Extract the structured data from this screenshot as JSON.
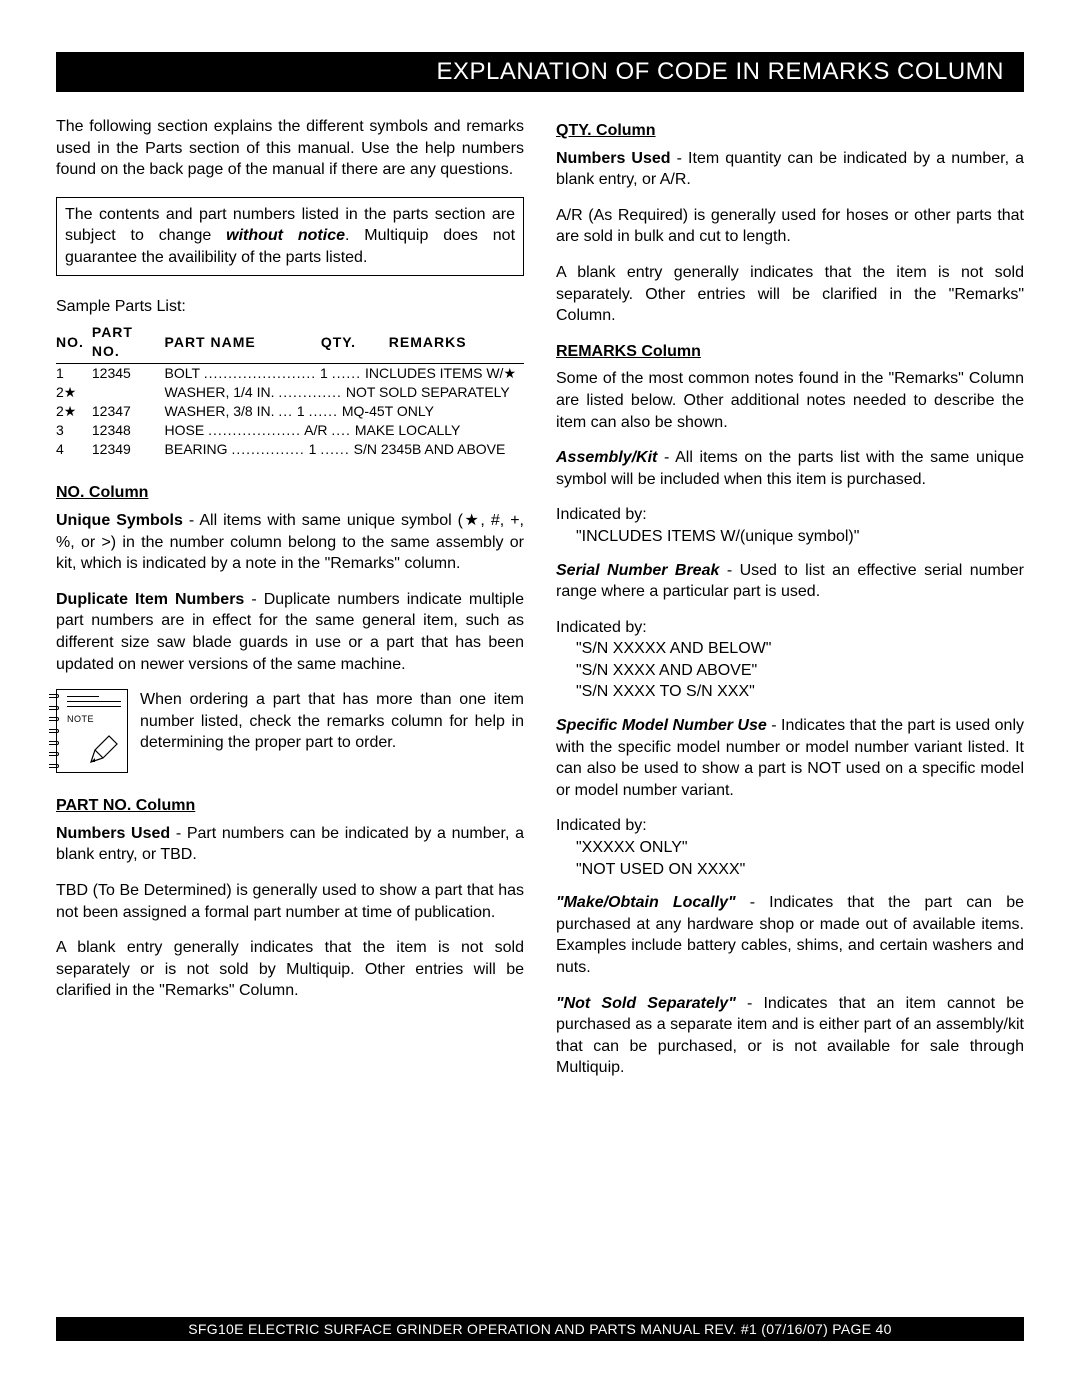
{
  "title": "EXPLANATION OF CODE IN REMARKS COLUMN",
  "intro": "The following section explains the different symbols and remarks used in the Parts section of this manual. Use the help numbers found on the back page of the manual if there are any questions.",
  "notice": {
    "pre": "The contents and part numbers listed in the parts section are subject to change ",
    "em": "without notice",
    "post": ". Multiquip does not guarantee the availibility of the parts listed."
  },
  "sample_label": "Sample Parts List:",
  "parts_table": {
    "headers": [
      "NO.",
      "PART NO.",
      "PART NAME",
      "QTY.",
      "REMARKS"
    ],
    "rows": [
      {
        "no": "1",
        "pn": "12345",
        "name": "BOLT",
        "dots1": ".......................",
        "qty": "1",
        "dots2": "......",
        "rem": "INCLUDES ITEMS W/★"
      },
      {
        "no": "2★",
        "pn": "",
        "name": "WASHER, 1/4 IN.",
        "dots1": "",
        "qty": "",
        "dots2": ".............",
        "rem": "NOT SOLD SEPARATELY"
      },
      {
        "no": "2★",
        "pn": "12347",
        "name": "WASHER, 3/8 IN.",
        "dots1": "...",
        "qty": "1",
        "dots2": "......",
        "rem": "MQ-45T ONLY"
      },
      {
        "no": "3",
        "pn": "12348",
        "name": "HOSE",
        "dots1": "...................",
        "qty": "A/R",
        "dots2": "....",
        "rem": "MAKE LOCALLY"
      },
      {
        "no": "4",
        "pn": "12349",
        "name": "BEARING",
        "dots1": "...............",
        "qty": "1",
        "dots2": "......",
        "rem": "S/N 2345B AND ABOVE"
      }
    ]
  },
  "note_icon_label": "NOTE",
  "left": {
    "no_column": {
      "head": "NO. Column",
      "unique_t": "Unique Symbols",
      "unique_b": " - All items with same unique symbol (★, #, +, %, or >) in the number column belong to the same assembly or kit, which is indicated by a note in the \"Remarks\" column.",
      "dup_t": "Duplicate Item Numbers",
      "dup_b": " - Duplicate numbers indicate multiple part numbers are in effect for the same general item, such as different size saw blade guards in use or a part that has been updated on newer versions of the same machine.",
      "note_text": "When ordering a part that has more than one item number listed, check the remarks column for help in determining the proper part to order."
    },
    "partno_column": {
      "head": "PART NO. Column",
      "nums_t": "Numbers Used",
      "nums_b": " - Part numbers can be indicated by a number, a blank entry, or TBD.",
      "tbd": "TBD (To Be Determined) is generally used to show a part that has not been assigned a formal part number at time of publication.",
      "blank": "A blank entry generally indicates that the item is not sold separately or is not sold by Multiquip. Other entries will be clarified in the \"Remarks\" Column."
    }
  },
  "right": {
    "qty_column": {
      "head": "QTY. Column",
      "nums_t": "Numbers Used",
      "nums_b": " - Item quantity can be indicated by a number, a blank entry, or A/R.",
      "ar": "A/R (As Required) is generally used for hoses or other parts that are sold in bulk and cut to length.",
      "blank": "A blank entry generally indicates that the item is not sold separately. Other entries will be clarified in the \"Remarks\" Column."
    },
    "remarks_column": {
      "head": "REMARKS Column",
      "intro": "Some of the most common notes found in the \"Remarks\" Column are listed below. Other additional notes needed to describe the item can also be shown.",
      "asm_t": "Assembly/Kit",
      "asm_b": " - All items on the parts list with the same unique symbol will be included when this item is purchased.",
      "asm_ind_label": "Indicated by:",
      "asm_ind": "\"INCLUDES ITEMS W/(unique symbol)\"",
      "snb_t": "Serial Number Break",
      "snb_b": " - Used to list an effective serial number range where a particular part is used.",
      "snb_ind_label": "Indicated by:",
      "snb_ind1": "\"S/N XXXXX AND BELOW\"",
      "snb_ind2": "\"S/N XXXX AND ABOVE\"",
      "snb_ind3": "\"S/N XXXX TO S/N XXX\"",
      "smn_t": "Specific Model Number Use",
      "smn_b": " - Indicates that the part is used only with the specific model number or model number variant listed. It can also be used to show a part is NOT used on a specific model or model number variant.",
      "smn_ind_label": "Indicated by:",
      "smn_ind1": "\"XXXXX ONLY\"",
      "smn_ind2": "\"NOT USED ON XXXX\"",
      "mol_t": "\"Make/Obtain Locally\"",
      "mol_b": " - Indicates that the part can be purchased at any hardware shop or made out of available items. Examples include battery cables, shims, and certain washers and nuts.",
      "nss_t": "\"Not Sold Separately\"",
      "nss_b": " - Indicates that an item cannot be purchased as a separate item and is either part of an assembly/kit that can be purchased, or is not available for sale through Multiquip."
    }
  },
  "footer": "SFG10E ELECTRIC SURFACE GRINDER OPERATION AND PARTS MANUAL REV. #1 (07/16/07) PAGE 40"
}
